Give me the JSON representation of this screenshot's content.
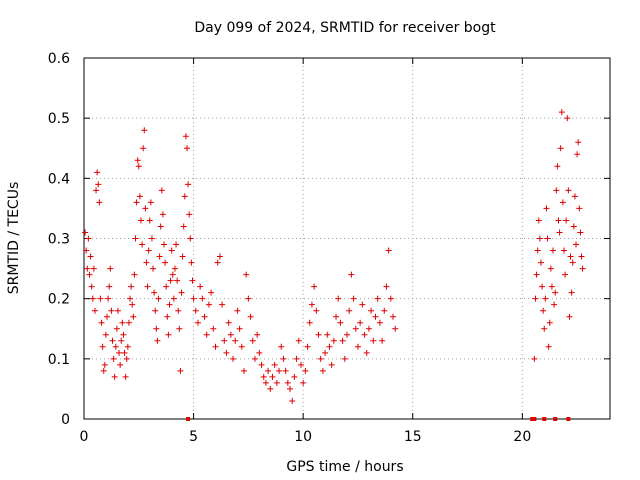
{
  "chart_data": {
    "type": "scatter",
    "title": "Day 099 of 2024, SRMTID for receiver bogt",
    "xlabel": "GPS time / hours",
    "ylabel": "SRMTID / TECUs",
    "xlim": [
      0,
      24
    ],
    "ylim": [
      0,
      0.6
    ],
    "x_ticks": [
      "0",
      "5",
      "10",
      "15",
      "20"
    ],
    "x_tick_values": [
      0,
      5,
      10,
      15,
      20
    ],
    "y_ticks": [
      "0",
      "0.1",
      "0.2",
      "0.3",
      "0.4",
      "0.5",
      "0.6"
    ],
    "y_tick_values": [
      0,
      0.1,
      0.2,
      0.3,
      0.4,
      0.5,
      0.6
    ],
    "grid": true,
    "marker": "+",
    "color": "#e00000",
    "series": [
      {
        "name": "SRMTID",
        "points": [
          [
            0.05,
            0.31
          ],
          [
            0.1,
            0.28
          ],
          [
            0.15,
            0.25
          ],
          [
            0.2,
            0.3
          ],
          [
            0.25,
            0.24
          ],
          [
            0.3,
            0.27
          ],
          [
            0.35,
            0.22
          ],
          [
            0.4,
            0.2
          ],
          [
            0.45,
            0.25
          ],
          [
            0.5,
            0.18
          ],
          [
            0.55,
            0.38
          ],
          [
            0.6,
            0.41
          ],
          [
            0.65,
            0.39
          ],
          [
            0.7,
            0.36
          ],
          [
            0.75,
            0.2
          ],
          [
            0.8,
            0.16
          ],
          [
            0.85,
            0.12
          ],
          [
            0.9,
            0.08
          ],
          [
            0.95,
            0.09
          ],
          [
            1.0,
            0.14
          ],
          [
            1.05,
            0.17
          ],
          [
            1.1,
            0.2
          ],
          [
            1.15,
            0.22
          ],
          [
            1.2,
            0.25
          ],
          [
            1.25,
            0.18
          ],
          [
            1.3,
            0.13
          ],
          [
            1.35,
            0.1
          ],
          [
            1.4,
            0.07
          ],
          [
            1.45,
            0.12
          ],
          [
            1.5,
            0.15
          ],
          [
            1.55,
            0.18
          ],
          [
            1.6,
            0.11
          ],
          [
            1.65,
            0.09
          ],
          [
            1.7,
            0.13
          ],
          [
            1.75,
            0.16
          ],
          [
            1.8,
            0.14
          ],
          [
            1.85,
            0.11
          ],
          [
            1.9,
            0.07
          ],
          [
            1.95,
            0.1
          ],
          [
            2.0,
            0.12
          ],
          [
            2.05,
            0.16
          ],
          [
            2.1,
            0.2
          ],
          [
            2.15,
            0.22
          ],
          [
            2.2,
            0.19
          ],
          [
            2.25,
            0.17
          ],
          [
            2.3,
            0.24
          ],
          [
            2.35,
            0.3
          ],
          [
            2.4,
            0.36
          ],
          [
            2.45,
            0.43
          ],
          [
            2.5,
            0.42
          ],
          [
            2.55,
            0.37
          ],
          [
            2.6,
            0.33
          ],
          [
            2.65,
            0.29
          ],
          [
            2.7,
            0.45
          ],
          [
            2.75,
            0.48
          ],
          [
            2.8,
            0.35
          ],
          [
            2.85,
            0.26
          ],
          [
            2.9,
            0.22
          ],
          [
            2.95,
            0.28
          ],
          [
            3.0,
            0.33
          ],
          [
            3.05,
            0.36
          ],
          [
            3.1,
            0.3
          ],
          [
            3.15,
            0.25
          ],
          [
            3.2,
            0.21
          ],
          [
            3.25,
            0.18
          ],
          [
            3.3,
            0.15
          ],
          [
            3.35,
            0.13
          ],
          [
            3.4,
            0.2
          ],
          [
            3.45,
            0.27
          ],
          [
            3.5,
            0.32
          ],
          [
            3.55,
            0.38
          ],
          [
            3.6,
            0.34
          ],
          [
            3.65,
            0.29
          ],
          [
            3.7,
            0.26
          ],
          [
            3.75,
            0.22
          ],
          [
            3.8,
            0.17
          ],
          [
            3.85,
            0.14
          ],
          [
            3.9,
            0.19
          ],
          [
            3.95,
            0.23
          ],
          [
            4.0,
            0.28
          ],
          [
            4.05,
            0.24
          ],
          [
            4.1,
            0.2
          ],
          [
            4.15,
            0.25
          ],
          [
            4.2,
            0.29
          ],
          [
            4.25,
            0.23
          ],
          [
            4.3,
            0.18
          ],
          [
            4.35,
            0.15
          ],
          [
            4.4,
            0.08
          ],
          [
            4.45,
            0.21
          ],
          [
            4.5,
            0.27
          ],
          [
            4.55,
            0.32
          ],
          [
            4.6,
            0.37
          ],
          [
            4.65,
            0.47
          ],
          [
            4.7,
            0.45
          ],
          [
            4.75,
            0.39
          ],
          [
            4.8,
            0.34
          ],
          [
            4.85,
            0.3
          ],
          [
            4.9,
            0.26
          ],
          [
            4.95,
            0.23
          ],
          [
            5.0,
            0.2
          ],
          [
            5.1,
            0.18
          ],
          [
            5.2,
            0.16
          ],
          [
            5.3,
            0.22
          ],
          [
            5.4,
            0.2
          ],
          [
            5.5,
            0.17
          ],
          [
            5.6,
            0.14
          ],
          [
            5.7,
            0.19
          ],
          [
            5.8,
            0.21
          ],
          [
            5.9,
            0.15
          ],
          [
            6.0,
            0.12
          ],
          [
            6.1,
            0.26
          ],
          [
            6.2,
            0.27
          ],
          [
            6.3,
            0.19
          ],
          [
            6.4,
            0.13
          ],
          [
            6.5,
            0.11
          ],
          [
            6.6,
            0.16
          ],
          [
            6.7,
            0.14
          ],
          [
            6.8,
            0.1
          ],
          [
            6.9,
            0.13
          ],
          [
            7.0,
            0.18
          ],
          [
            7.1,
            0.15
          ],
          [
            7.2,
            0.12
          ],
          [
            7.3,
            0.08
          ],
          [
            7.4,
            0.24
          ],
          [
            7.5,
            0.2
          ],
          [
            7.6,
            0.17
          ],
          [
            7.7,
            0.13
          ],
          [
            7.8,
            0.1
          ],
          [
            7.9,
            0.14
          ],
          [
            8.0,
            0.11
          ],
          [
            8.1,
            0.09
          ],
          [
            8.2,
            0.07
          ],
          [
            8.3,
            0.06
          ],
          [
            8.4,
            0.08
          ],
          [
            8.5,
            0.05
          ],
          [
            8.6,
            0.07
          ],
          [
            8.7,
            0.09
          ],
          [
            8.8,
            0.06
          ],
          [
            8.9,
            0.08
          ],
          [
            9.0,
            0.12
          ],
          [
            9.1,
            0.1
          ],
          [
            9.2,
            0.08
          ],
          [
            9.3,
            0.06
          ],
          [
            9.4,
            0.05
          ],
          [
            9.5,
            0.03
          ],
          [
            9.6,
            0.07
          ],
          [
            9.7,
            0.1
          ],
          [
            9.8,
            0.13
          ],
          [
            9.9,
            0.09
          ],
          [
            10.0,
            0.06
          ],
          [
            10.1,
            0.08
          ],
          [
            10.2,
            0.12
          ],
          [
            10.3,
            0.16
          ],
          [
            10.4,
            0.19
          ],
          [
            10.5,
            0.22
          ],
          [
            10.6,
            0.18
          ],
          [
            10.7,
            0.14
          ],
          [
            10.8,
            0.1
          ],
          [
            10.9,
            0.08
          ],
          [
            11.0,
            0.11
          ],
          [
            11.1,
            0.14
          ],
          [
            11.2,
            0.12
          ],
          [
            11.3,
            0.09
          ],
          [
            11.4,
            0.13
          ],
          [
            11.5,
            0.17
          ],
          [
            11.6,
            0.2
          ],
          [
            11.7,
            0.16
          ],
          [
            11.8,
            0.13
          ],
          [
            11.9,
            0.1
          ],
          [
            12.0,
            0.14
          ],
          [
            12.1,
            0.18
          ],
          [
            12.2,
            0.24
          ],
          [
            12.3,
            0.2
          ],
          [
            12.4,
            0.15
          ],
          [
            12.5,
            0.12
          ],
          [
            12.6,
            0.16
          ],
          [
            12.7,
            0.19
          ],
          [
            12.8,
            0.14
          ],
          [
            12.9,
            0.11
          ],
          [
            13.0,
            0.15
          ],
          [
            13.1,
            0.18
          ],
          [
            13.2,
            0.13
          ],
          [
            13.3,
            0.17
          ],
          [
            13.4,
            0.2
          ],
          [
            13.5,
            0.16
          ],
          [
            13.6,
            0.13
          ],
          [
            13.7,
            0.18
          ],
          [
            13.8,
            0.22
          ],
          [
            13.9,
            0.28
          ],
          [
            14.0,
            0.2
          ],
          [
            14.1,
            0.17
          ],
          [
            14.2,
            0.15
          ],
          [
            20.55,
            0.1
          ],
          [
            20.6,
            0.2
          ],
          [
            20.65,
            0.24
          ],
          [
            20.7,
            0.28
          ],
          [
            20.75,
            0.33
          ],
          [
            20.8,
            0.3
          ],
          [
            20.85,
            0.26
          ],
          [
            20.9,
            0.22
          ],
          [
            20.95,
            0.18
          ],
          [
            21.0,
            0.15
          ],
          [
            21.05,
            0.2
          ],
          [
            21.1,
            0.35
          ],
          [
            21.15,
            0.3
          ],
          [
            21.2,
            0.12
          ],
          [
            21.25,
            0.16
          ],
          [
            21.3,
            0.25
          ],
          [
            21.35,
            0.22
          ],
          [
            21.4,
            0.28
          ],
          [
            21.45,
            0.19
          ],
          [
            21.5,
            0.21
          ],
          [
            21.55,
            0.38
          ],
          [
            21.6,
            0.42
          ],
          [
            21.65,
            0.33
          ],
          [
            21.7,
            0.31
          ],
          [
            21.75,
            0.45
          ],
          [
            21.8,
            0.51
          ],
          [
            21.85,
            0.36
          ],
          [
            21.9,
            0.28
          ],
          [
            21.95,
            0.24
          ],
          [
            22.0,
            0.33
          ],
          [
            22.05,
            0.5
          ],
          [
            22.1,
            0.38
          ],
          [
            22.15,
            0.17
          ],
          [
            22.2,
            0.27
          ],
          [
            22.25,
            0.21
          ],
          [
            22.3,
            0.26
          ],
          [
            22.35,
            0.32
          ],
          [
            22.4,
            0.37
          ],
          [
            22.45,
            0.29
          ],
          [
            22.5,
            0.44
          ],
          [
            22.55,
            0.46
          ],
          [
            22.6,
            0.35
          ],
          [
            22.65,
            0.31
          ],
          [
            22.7,
            0.27
          ],
          [
            22.75,
            0.25
          ]
        ]
      }
    ],
    "zero_markers_x": [
      4.75,
      20.45,
      20.55,
      21.0,
      21.5,
      22.1
    ]
  }
}
